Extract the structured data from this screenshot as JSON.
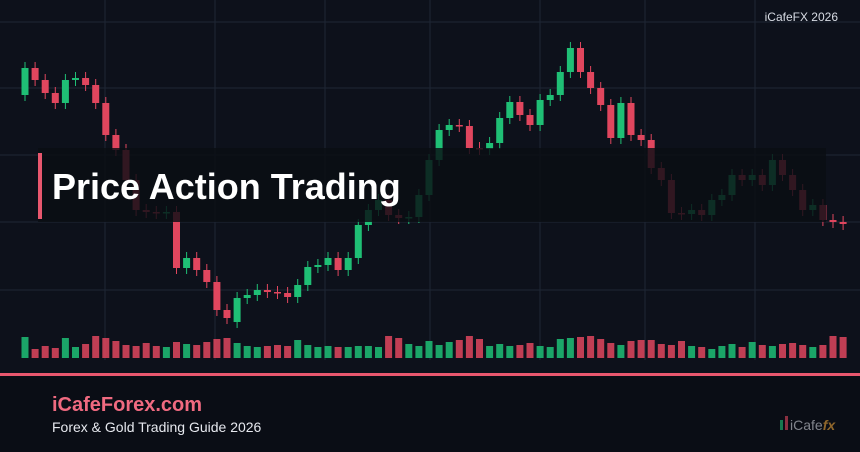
{
  "chart_data": {
    "type": "candlestick",
    "watermark": "iCafeFX 2026",
    "title": "Price Action Trading",
    "up_color": "#1fbf75",
    "down_color": "#e0465e",
    "ylim": [
      0,
      400
    ],
    "volume_lim": [
      0,
      25
    ],
    "open": [
      305,
      332,
      320,
      307,
      297,
      320,
      322,
      315,
      297,
      265,
      250,
      220,
      190,
      188,
      187,
      188,
      132,
      142,
      130,
      118,
      90,
      78,
      102,
      105,
      110,
      108,
      107,
      103,
      115,
      133,
      135,
      142,
      130,
      142,
      175,
      190,
      200,
      185,
      182,
      183,
      205,
      240,
      270,
      275,
      274,
      252,
      251,
      257,
      282,
      298,
      285,
      275,
      300,
      305,
      328,
      352,
      328,
      312,
      295,
      262,
      297,
      265,
      260,
      232,
      220,
      187,
      186,
      190,
      185,
      200,
      205,
      225,
      220,
      225,
      215,
      240,
      225,
      210,
      190,
      195,
      180,
      178
    ],
    "close": [
      332,
      320,
      307,
      297,
      320,
      322,
      315,
      297,
      265,
      250,
      220,
      190,
      188,
      187,
      188,
      132,
      142,
      130,
      118,
      90,
      82,
      102,
      105,
      110,
      108,
      107,
      103,
      115,
      133,
      135,
      142,
      130,
      142,
      175,
      190,
      200,
      185,
      182,
      183,
      205,
      240,
      270,
      275,
      274,
      252,
      251,
      257,
      282,
      298,
      285,
      275,
      300,
      305,
      328,
      352,
      328,
      312,
      295,
      262,
      297,
      265,
      260,
      232,
      220,
      187,
      186,
      190,
      185,
      200,
      205,
      225,
      220,
      225,
      215,
      240,
      225,
      210,
      190,
      195,
      180,
      178,
      176
    ],
    "high": [
      338,
      338,
      326,
      313,
      326,
      328,
      328,
      321,
      303,
      271,
      256,
      226,
      196,
      194,
      194,
      194,
      148,
      148,
      136,
      124,
      96,
      108,
      111,
      116,
      116,
      114,
      113,
      121,
      139,
      141,
      148,
      148,
      148,
      181,
      196,
      206,
      206,
      191,
      189,
      211,
      246,
      276,
      281,
      281,
      280,
      258,
      263,
      288,
      304,
      304,
      291,
      306,
      311,
      334,
      358,
      358,
      334,
      318,
      301,
      303,
      303,
      271,
      266,
      238,
      226,
      193,
      196,
      196,
      206,
      211,
      231,
      231,
      231,
      231,
      246,
      246,
      231,
      216,
      201,
      201,
      186,
      184
    ],
    "low": [
      299,
      314,
      301,
      291,
      291,
      314,
      309,
      291,
      259,
      244,
      214,
      184,
      182,
      181,
      181,
      126,
      126,
      124,
      112,
      84,
      76,
      72,
      96,
      99,
      102,
      101,
      97,
      97,
      109,
      127,
      129,
      124,
      124,
      136,
      169,
      184,
      179,
      176,
      176,
      177,
      199,
      234,
      264,
      268,
      246,
      245,
      245,
      251,
      276,
      279,
      269,
      269,
      294,
      299,
      322,
      322,
      306,
      289,
      256,
      256,
      259,
      254,
      226,
      214,
      181,
      180,
      180,
      179,
      179,
      194,
      199,
      214,
      214,
      209,
      209,
      219,
      204,
      184,
      184,
      174,
      172,
      170
    ],
    "volume": [
      21,
      9,
      12,
      10,
      20,
      11,
      14,
      22,
      20,
      17,
      13,
      12,
      15,
      12,
      11,
      16,
      14,
      13,
      16,
      19,
      20,
      15,
      12,
      11,
      12,
      13,
      12,
      18,
      13,
      11,
      12,
      11,
      11,
      12,
      12,
      11,
      22,
      20,
      14,
      12,
      17,
      13,
      16,
      18,
      22,
      19,
      12,
      14,
      12,
      13,
      15,
      12,
      11,
      19,
      20,
      21,
      22,
      19,
      15,
      13,
      17,
      18,
      18,
      14,
      13,
      17,
      12,
      11,
      9,
      12,
      14,
      11,
      16,
      13,
      12,
      14,
      15,
      13,
      11,
      13,
      22,
      21
    ]
  },
  "footer": {
    "site": "iCafeForex.com",
    "subtitle": "Forex & Gold Trading Guide 2026",
    "logo_main": "iCafe",
    "logo_accent": "fx"
  }
}
